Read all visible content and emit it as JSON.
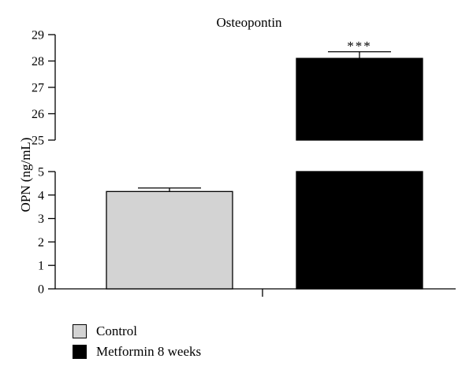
{
  "chart_data": {
    "type": "bar",
    "title": "Osteopontin",
    "ylabel": "OPN (ng/mL)",
    "xlabel": "",
    "axis_break": true,
    "lower_segment": {
      "ylim": [
        0,
        5
      ],
      "ticks": [
        0,
        1,
        2,
        3,
        4,
        5
      ]
    },
    "upper_segment": {
      "ylim": [
        25,
        29
      ],
      "ticks": [
        25,
        26,
        27,
        28,
        29
      ]
    },
    "categories": [
      "Control",
      "Metformin 8 weeks"
    ],
    "values": [
      4.15,
      28.1
    ],
    "error": [
      0.15,
      0.25
    ],
    "colors": [
      "#d3d3d3",
      "#000000"
    ],
    "significance": [
      "",
      "***"
    ],
    "grid": false,
    "legend_position": "bottom-left"
  },
  "legend": {
    "items": [
      {
        "label": "Control",
        "color": "#d3d3d3"
      },
      {
        "label": "Metformin 8 weeks",
        "color": "#000000"
      }
    ]
  }
}
